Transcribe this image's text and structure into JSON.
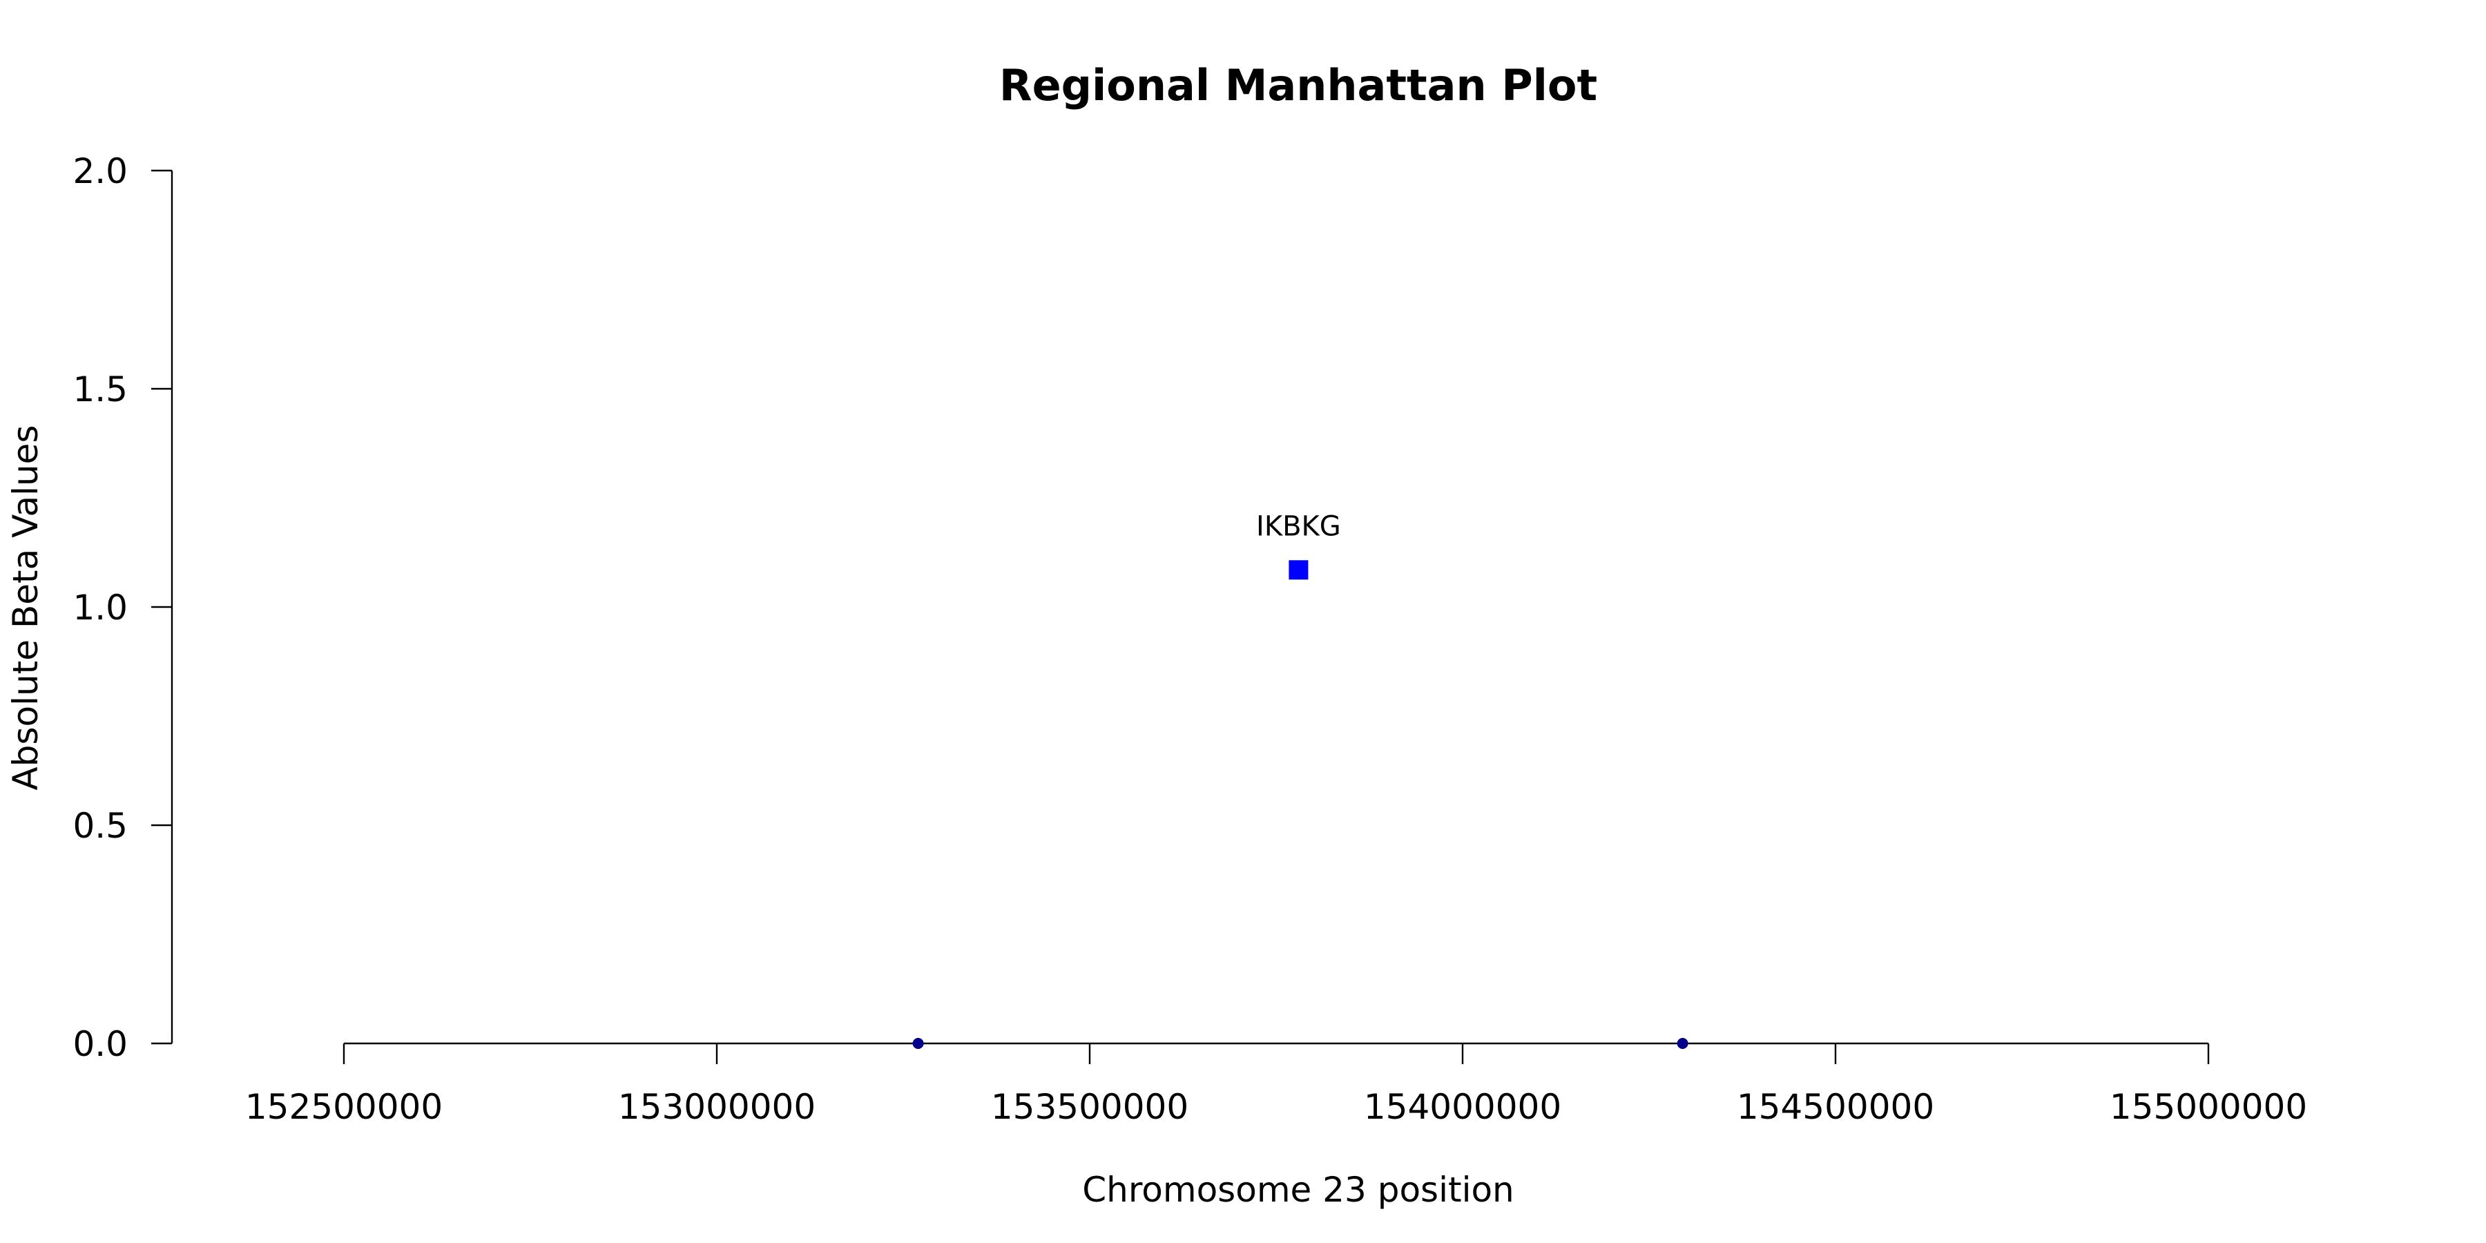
{
  "chart_data": {
    "type": "scatter",
    "title": "Regional Manhattan Plot",
    "xlabel": "Chromosome 23 position",
    "ylabel": "Absolute Beta Values",
    "xlim": [
      152500000,
      155000000
    ],
    "ylim": [
      0,
      2
    ],
    "x_ticks": [
      "152500000",
      "153000000",
      "153500000",
      "154000000",
      "154500000",
      "155000000"
    ],
    "y_ticks": [
      "0.0",
      "0.5",
      "1.0",
      "1.5",
      "2.0"
    ],
    "grid": false,
    "points": [
      {
        "x": 153270000,
        "y": 0.0,
        "shape": "circle",
        "color": "#00008B"
      },
      {
        "x": 154295000,
        "y": 0.0,
        "shape": "circle",
        "color": "#00008B"
      },
      {
        "x": 153780000,
        "y": 1.085,
        "shape": "square",
        "color": "#0000FF",
        "label": "IKBKG"
      }
    ]
  }
}
